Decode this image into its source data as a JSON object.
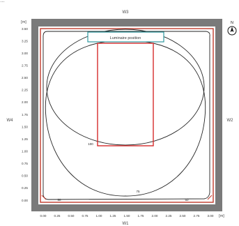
{
  "header_fragment": "…",
  "walls": {
    "top": "W3",
    "right": "W2",
    "bottom": "W1",
    "left": "W4"
  },
  "north": {
    "label": "N"
  },
  "units": {
    "x": "[m]",
    "y": "[m]"
  },
  "luminaire_label": "Luminaire position",
  "x_ticks": [
    "0.00",
    "0.25",
    "0.50",
    "0.75",
    "1.00",
    "1.25",
    "1.50",
    "1.75",
    "2.00",
    "2.25",
    "2.50",
    "2.75",
    "3.00"
  ],
  "y_ticks": [
    "3.50",
    "3.25",
    "3.00",
    "2.75",
    "2.50",
    "2.25",
    "2.00",
    "1.75",
    "1.50",
    "1.25",
    "1.00",
    "0.75",
    "0.50",
    "0.25",
    "0.00"
  ],
  "contour_labels": {
    "c100": "100",
    "c75": "75",
    "c50_left": "50",
    "c50_right": "50"
  },
  "colors": {
    "wall": "#7a7a7a",
    "room_outline": "#c0392b",
    "luminaire": "#2f9aa0",
    "contour": "#222222"
  }
}
